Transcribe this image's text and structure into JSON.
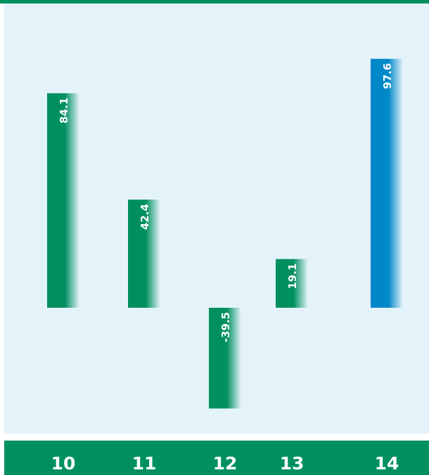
{
  "chart_data": {
    "type": "bar",
    "categories": [
      "10",
      "11",
      "12",
      "13",
      "14"
    ],
    "values": [
      84.1,
      42.4,
      -39.5,
      19.1,
      97.6
    ],
    "data_labels": [
      "84.1",
      "42.4",
      "-39.5",
      "19.1",
      "97.6"
    ],
    "title": "",
    "xlabel": "",
    "ylabel": "",
    "ylim": [
      -40,
      100
    ],
    "grid": false,
    "legend": "none",
    "colors": {
      "default_bar": "#009060",
      "highlight_bar": "#0088c8",
      "panel_background": "#e4f3fa",
      "band": "#009060",
      "text": "#ffffff"
    },
    "highlight_index": 4
  }
}
